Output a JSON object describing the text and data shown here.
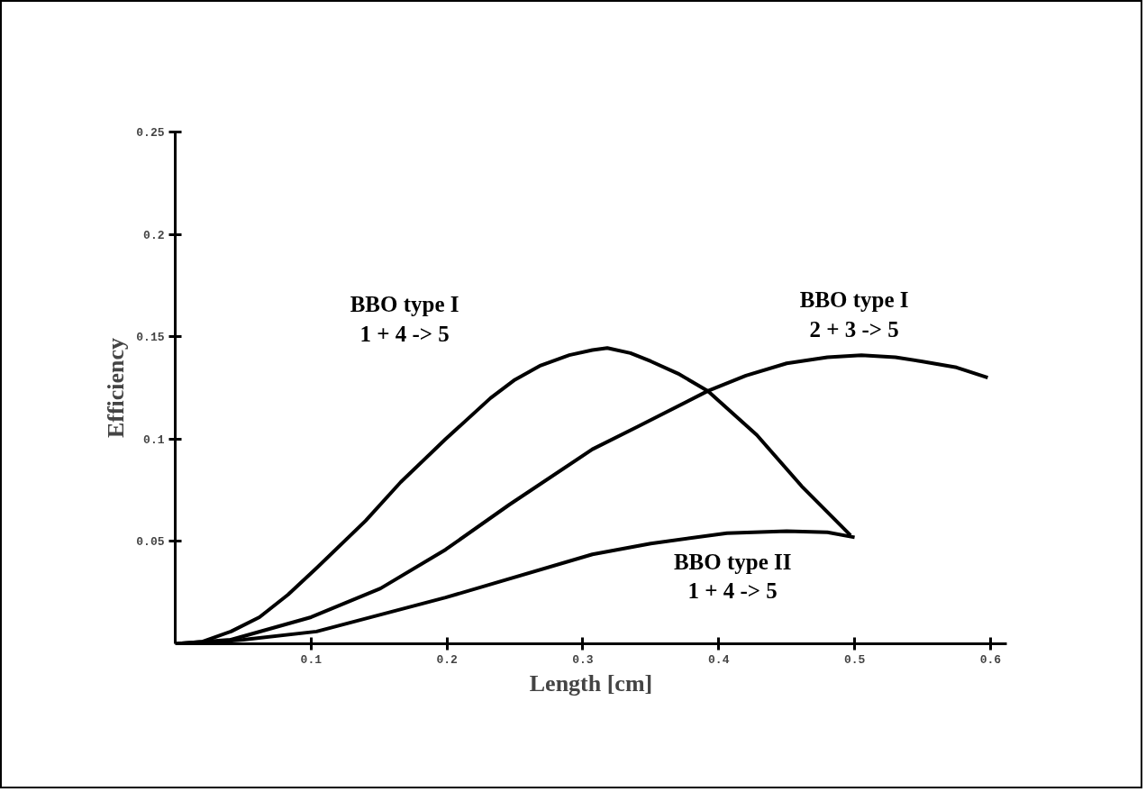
{
  "chart_data": {
    "type": "line",
    "xlabel": "Length [cm]",
    "ylabel": "Efficiency",
    "xlim": [
      0,
      0.612
    ],
    "ylim": [
      0,
      0.25
    ],
    "xticks": [
      0.1,
      0.2,
      0.3,
      0.4,
      0.5,
      0.6
    ],
    "yticks": [
      0.05,
      0.1,
      0.15,
      0.2,
      0.25
    ],
    "grid": false,
    "marker": "none",
    "line_style": "solid",
    "series": [
      {
        "name": "BBO type I\n1 + 4 -> 5",
        "color": "#000000",
        "x": [
          0,
          0.02,
          0.041,
          0.062,
          0.083,
          0.104,
          0.14,
          0.166,
          0.199,
          0.232,
          0.25,
          0.269,
          0.29,
          0.307,
          0.318,
          0.335,
          0.35,
          0.37,
          0.392,
          0.428,
          0.461,
          0.497
        ],
        "values": [
          0,
          0.001,
          0.006,
          0.013,
          0.024,
          0.037,
          0.06,
          0.079,
          0.1,
          0.12,
          0.129,
          0.136,
          0.141,
          0.1435,
          0.1445,
          0.142,
          0.138,
          0.132,
          0.1235,
          0.102,
          0.077,
          0.053
        ]
      },
      {
        "name": "BBO type I\n2 + 3 -> 5",
        "color": "#000000",
        "x": [
          0,
          0.041,
          0.1,
          0.151,
          0.199,
          0.246,
          0.307,
          0.34,
          0.392,
          0.42,
          0.45,
          0.48,
          0.505,
          0.53,
          0.549,
          0.575,
          0.598
        ],
        "values": [
          0,
          0.002,
          0.013,
          0.027,
          0.046,
          0.068,
          0.095,
          0.106,
          0.1235,
          0.131,
          0.137,
          0.14,
          0.141,
          0.14,
          0.138,
          0.135,
          0.13
        ]
      },
      {
        "name": "BBO type II\n1 + 4 -> 5",
        "color": "#000000",
        "x": [
          0.02,
          0.05,
          0.104,
          0.199,
          0.307,
          0.35,
          0.406,
          0.45,
          0.48,
          0.5
        ],
        "values": [
          0.0003,
          0.002,
          0.006,
          0.0226,
          0.0437,
          0.049,
          0.054,
          0.055,
          0.0545,
          0.052
        ]
      }
    ]
  }
}
